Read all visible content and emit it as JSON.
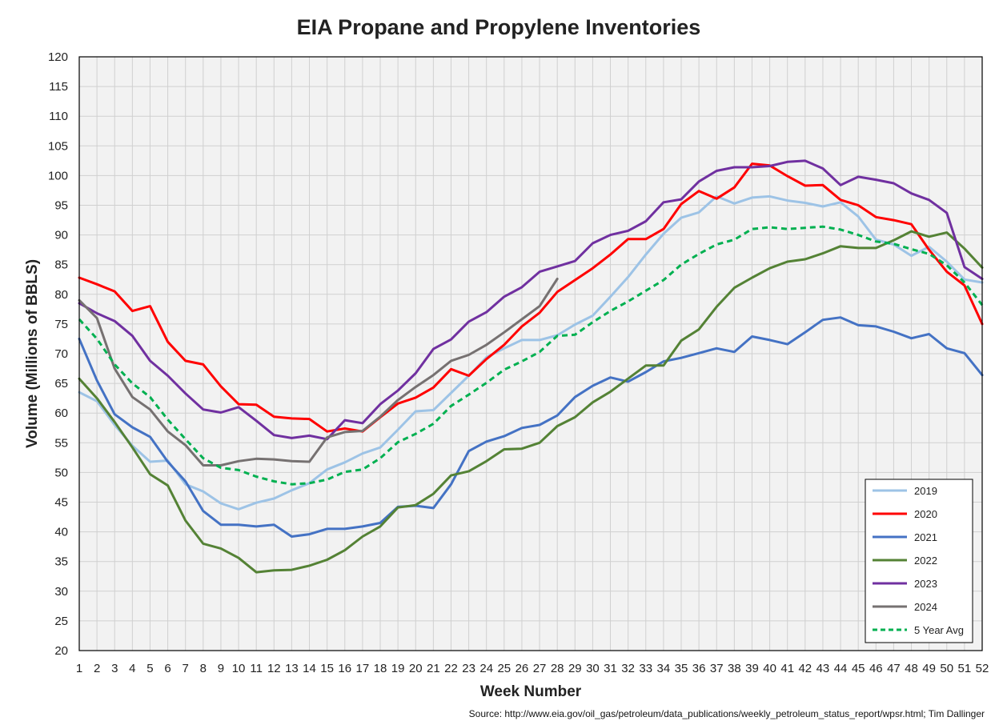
{
  "chart_data": {
    "type": "line",
    "title": "EIA Propane and Propylene Inventories",
    "xlabel": "Week Number",
    "ylabel": "Volume (Millions of BBLS)",
    "source": "Source: http://www.eia.gov/oil_gas/petroleum/data_publications/weekly_petroleum_status_report/wpsr.html; Tim Dallinger",
    "xlim": [
      1,
      52
    ],
    "ylim": [
      20,
      120
    ],
    "ytick_step": 5,
    "grid": true,
    "legend_position": "bottom-right",
    "series": [
      {
        "name": "2019",
        "color": "#9dc3e6",
        "dash": false,
        "values": [
          63.5,
          62,
          58,
          54.5,
          51.8,
          52,
          48,
          46.8,
          44.8,
          43.8,
          44.9,
          45.6,
          47,
          48.2,
          50.5,
          51.7,
          53.2,
          54.2,
          57.2,
          60.3,
          60.5,
          63.4,
          66.3,
          69.4,
          70.9,
          72.3,
          72.3,
          73.1,
          74.9,
          76.4,
          79.6,
          82.9,
          86.7,
          90.2,
          92.9,
          93.8,
          96.5,
          95.3,
          96.3,
          96.5,
          95.8,
          95.4,
          94.8,
          95.5,
          93.1,
          89.2,
          88.4,
          86.5,
          88,
          85.5,
          82.5,
          82
        ]
      },
      {
        "name": "2020",
        "color": "#ff0000",
        "dash": false,
        "values": [
          82.8,
          81.7,
          80.5,
          77.2,
          78,
          72,
          68.8,
          68.2,
          64.5,
          61.5,
          61.4,
          59.4,
          59.1,
          59,
          56.9,
          57.4,
          56.9,
          59.3,
          61.6,
          62.6,
          64.3,
          67.4,
          66.3,
          69.1,
          71.5,
          74.6,
          76.9,
          80.4,
          82.4,
          84.4,
          86.7,
          89.3,
          89.3,
          91,
          95.2,
          97.4,
          96.1,
          98,
          102,
          101.7,
          99.9,
          98.3,
          98.4,
          95.9,
          95,
          93,
          92.5,
          91.8,
          87.5,
          83.8,
          81.5,
          75
        ]
      },
      {
        "name": "2021",
        "color": "#4472c4",
        "dash": false,
        "values": [
          72.5,
          65.5,
          59.8,
          57.6,
          56,
          51.8,
          48.5,
          43.5,
          41.2,
          41.2,
          40.9,
          41.2,
          39.2,
          39.6,
          40.5,
          40.5,
          40.9,
          41.5,
          44.2,
          44.4,
          44,
          48,
          53.6,
          55.2,
          56.1,
          57.5,
          58,
          59.6,
          62.7,
          64.6,
          66,
          65.3,
          66.9,
          68.7,
          69.3,
          70.1,
          70.9,
          70.3,
          72.9,
          72.3,
          71.6,
          73.6,
          75.7,
          76.1,
          74.8,
          74.6,
          73.7,
          72.6,
          73.3,
          70.9,
          70.1,
          66.4
        ]
      },
      {
        "name": "2022",
        "color": "#548235",
        "dash": false,
        "values": [
          65.8,
          62.5,
          58.5,
          54.2,
          49.7,
          47.8,
          41.9,
          38,
          37.2,
          35.6,
          33.2,
          33.5,
          33.6,
          34.3,
          35.3,
          36.9,
          39.2,
          40.9,
          44.1,
          44.5,
          46.4,
          49.5,
          50.2,
          51.9,
          53.9,
          54,
          55,
          57.8,
          59.3,
          61.8,
          63.6,
          65.8,
          68,
          68,
          72.2,
          74.1,
          77.9,
          81.1,
          82.8,
          84.4,
          85.5,
          85.9,
          86.9,
          88.1,
          87.8,
          87.8,
          89.1,
          90.6,
          89.7,
          90.4,
          87.7,
          84.5
        ]
      },
      {
        "name": "2023",
        "color": "#7030a0",
        "dash": false,
        "values": [
          78.5,
          76.8,
          75.5,
          73,
          68.8,
          66.3,
          63.3,
          60.6,
          60.1,
          61,
          58.7,
          56.3,
          55.8,
          56.2,
          55.6,
          58.8,
          58.3,
          61.5,
          63.8,
          66.7,
          70.8,
          72.4,
          75.4,
          77,
          79.6,
          81.2,
          83.8,
          84.7,
          85.6,
          88.6,
          90,
          90.7,
          92.3,
          95.5,
          96,
          99,
          100.8,
          101.4,
          101.4,
          101.6,
          102.3,
          102.5,
          101.2,
          98.4,
          99.8,
          99.3,
          98.7,
          97,
          95.9,
          93.7,
          84.6,
          82.6
        ]
      },
      {
        "name": "2024",
        "color": "#767171",
        "dash": false,
        "values": [
          79,
          76,
          67.5,
          62.7,
          60.6,
          56.9,
          54.6,
          51.2,
          51.2,
          51.9,
          52.3,
          52.2,
          51.9,
          51.8,
          55.9,
          56.8,
          57,
          59.4,
          62.2,
          64.4,
          66.4,
          68.8,
          69.8,
          71.5,
          73.6,
          75.8,
          78,
          82.6
        ]
      },
      {
        "name": "5 Year Avg",
        "color": "#00b050",
        "dash": true,
        "values": [
          75.8,
          72.5,
          68.2,
          65,
          62.7,
          58.9,
          55.6,
          52.4,
          50.8,
          50.4,
          49.3,
          48.5,
          48,
          48.2,
          48.8,
          50.1,
          50.5,
          52.4,
          55.1,
          56.5,
          58.2,
          61.2,
          63.1,
          65.1,
          67.3,
          68.7,
          70.3,
          73,
          73.2,
          75.3,
          77.2,
          78.8,
          80.6,
          82.4,
          85,
          86.8,
          88.4,
          89.2,
          91,
          91.3,
          91,
          91.2,
          91.4,
          90.9,
          90,
          88.9,
          88.5,
          87.6,
          86.8,
          84.9,
          82,
          78.2
        ]
      }
    ]
  }
}
